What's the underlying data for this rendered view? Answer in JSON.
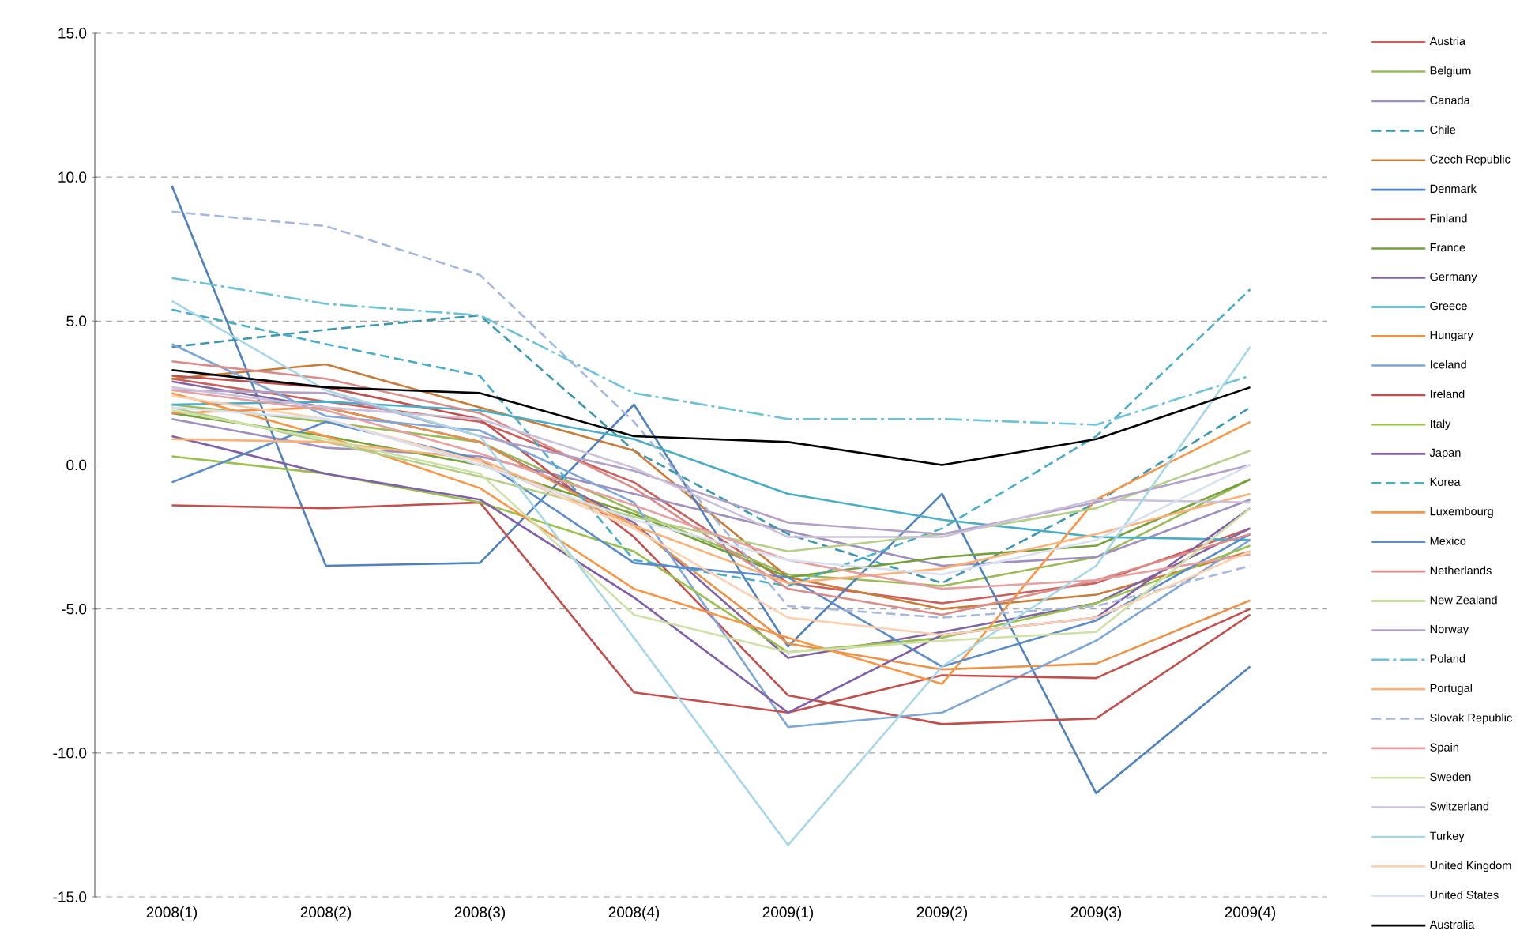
{
  "chart_data": {
    "type": "line",
    "categories": [
      "2008(1)",
      "2008(2)",
      "2008(3)",
      "2008(4)",
      "2009(1)",
      "2009(2)",
      "2009(3)",
      "2009(4)"
    ],
    "ylim": [
      -15,
      15
    ],
    "yticks": [
      {
        "value": -15,
        "label": "-15.0"
      },
      {
        "value": -10,
        "label": "-10.0"
      },
      {
        "value": -5,
        "label": "-5.0"
      },
      {
        "value": 0,
        "label": "0.0"
      },
      {
        "value": 5,
        "label": "5.0"
      },
      {
        "value": 10,
        "label": "10.0"
      },
      {
        "value": 15,
        "label": "15.0"
      }
    ],
    "grid": "y",
    "legend": "right",
    "series": [
      {
        "name": "Austria",
        "color": "#c9605c",
        "values": [
          3.0,
          2.2,
          1.5,
          -0.6,
          -4.1,
          -4.8,
          -4.1,
          -2.2
        ]
      },
      {
        "name": "Belgium",
        "color": "#9bbb59",
        "values": [
          2.1,
          1.5,
          0.8,
          -1.6,
          -3.8,
          -4.2,
          -3.2,
          -0.5
        ]
      },
      {
        "name": "Canada",
        "color": "#9f8fbf",
        "values": [
          1.6,
          0.6,
          0.3,
          -1.0,
          -2.3,
          -3.5,
          -3.2,
          -1.2
        ]
      },
      {
        "name": "Chile",
        "color": "#3d96ab",
        "line_style": "dashed",
        "values": [
          4.1,
          4.7,
          5.2,
          0.5,
          -2.4,
          -4.1,
          -1.3,
          2.0
        ]
      },
      {
        "name": "Czech Republic",
        "color": "#c77c3a",
        "values": [
          3.0,
          3.5,
          2.0,
          0.5,
          -3.9,
          -5.0,
          -4.5,
          -3.0
        ]
      },
      {
        "name": "Denmark",
        "color": "#4f81bd",
        "values": [
          9.7,
          -3.5,
          -3.4,
          2.1,
          -6.3,
          -1.0,
          -11.4,
          -7.0
        ]
      },
      {
        "name": "Finland",
        "color": "#c0504d",
        "values": [
          3.1,
          2.7,
          1.6,
          -2.5,
          -8.0,
          -9.0,
          -8.8,
          -5.2
        ]
      },
      {
        "name": "France",
        "color": "#77a03c",
        "values": [
          1.8,
          1.0,
          0.0,
          -1.7,
          -3.9,
          -3.2,
          -2.8,
          -0.5
        ]
      },
      {
        "name": "Germany",
        "color": "#8064a2",
        "values": [
          2.9,
          2.0,
          0.8,
          -2.0,
          -6.7,
          -5.8,
          -4.8,
          -2.2
        ]
      },
      {
        "name": "Greece",
        "color": "#4bacc6",
        "values": [
          2.1,
          2.2,
          1.9,
          0.9,
          -1.0,
          -1.9,
          -2.5,
          -2.6
        ]
      },
      {
        "name": "Hungary",
        "color": "#e8924a",
        "values": [
          1.8,
          2.0,
          0.8,
          -2.1,
          -6.2,
          -7.1,
          -6.9,
          -4.7
        ]
      },
      {
        "name": "Iceland",
        "color": "#7ea6d6",
        "values": [
          4.2,
          1.7,
          1.2,
          -1.3,
          -9.1,
          -8.6,
          -6.1,
          -2.6
        ]
      },
      {
        "name": "Ireland",
        "color": "#c0504d",
        "values": [
          -1.4,
          -1.5,
          -1.3,
          -7.9,
          -8.6,
          -7.3,
          -7.4,
          -5.0
        ]
      },
      {
        "name": "Italy",
        "color": "#9bc04f",
        "values": [
          0.3,
          -0.3,
          -1.3,
          -3.0,
          -6.5,
          -6.0,
          -4.8,
          -2.8
        ]
      },
      {
        "name": "Japan",
        "color": "#7f5fa8",
        "values": [
          1.0,
          -0.3,
          -1.2,
          -4.6,
          -8.6,
          -5.9,
          -5.3,
          -1.5
        ]
      },
      {
        "name": "Korea",
        "color": "#4bacc6",
        "line_style": "dashed",
        "values": [
          5.4,
          4.2,
          3.1,
          -3.3,
          -4.2,
          -2.2,
          1.0,
          6.1
        ]
      },
      {
        "name": "Luxembourg",
        "color": "#f79646",
        "values": [
          2.5,
          1.0,
          -0.8,
          -4.3,
          -6.0,
          -7.6,
          -1.2,
          1.5
        ]
      },
      {
        "name": "Mexico",
        "color": "#5b8bc9",
        "values": [
          -0.6,
          1.5,
          0.2,
          -3.4,
          -3.9,
          -7.0,
          -5.4,
          -2.4
        ]
      },
      {
        "name": "Netherlands",
        "color": "#d98c8a",
        "values": [
          3.6,
          3.0,
          1.8,
          -0.8,
          -4.3,
          -5.2,
          -4.0,
          -2.4
        ]
      },
      {
        "name": "New Zealand",
        "color": "#b5cf8a",
        "values": [
          2.0,
          0.8,
          -0.4,
          -1.8,
          -3.0,
          -2.4,
          -1.5,
          0.5
        ]
      },
      {
        "name": "Norway",
        "color": "#b3a2c7",
        "values": [
          2.6,
          2.5,
          1.0,
          -0.2,
          -2.0,
          -2.4,
          -1.3,
          0.0
        ]
      },
      {
        "name": "Poland",
        "color": "#6fc1d6",
        "line_style": "dashdot",
        "values": [
          6.5,
          5.6,
          5.2,
          2.5,
          1.6,
          1.6,
          1.4,
          3.1
        ]
      },
      {
        "name": "Portugal",
        "color": "#fab27a",
        "values": [
          0.9,
          0.8,
          0.2,
          -2.1,
          -4.1,
          -3.6,
          -2.4,
          -1.0
        ]
      },
      {
        "name": "Slovak Republic",
        "color": "#a6b8dc",
        "line_style": "dashed",
        "values": [
          8.8,
          8.3,
          6.6,
          1.5,
          -4.9,
          -5.3,
          -4.9,
          -3.5
        ]
      },
      {
        "name": "Spain",
        "color": "#e6a0a0",
        "values": [
          2.6,
          1.9,
          0.4,
          -1.4,
          -3.3,
          -4.3,
          -4.0,
          -3.1
        ]
      },
      {
        "name": "Sweden",
        "color": "#cfe0a8",
        "values": [
          1.9,
          0.9,
          -0.3,
          -5.2,
          -6.5,
          -6.1,
          -5.8,
          -1.5
        ]
      },
      {
        "name": "Switzerland",
        "color": "#ccc1da",
        "values": [
          2.7,
          2.0,
          1.6,
          -0.1,
          -2.5,
          -2.5,
          -1.2,
          -1.3
        ]
      },
      {
        "name": "Turkey",
        "color": "#a9d6e5",
        "values": [
          5.7,
          2.6,
          1.0,
          -6.0,
          -13.2,
          -7.0,
          -3.5,
          4.1
        ]
      },
      {
        "name": "United Kingdom",
        "color": "#fcd0b0",
        "values": [
          2.4,
          1.6,
          0.1,
          -2.2,
          -5.3,
          -5.9,
          -5.3,
          -3.0
        ]
      },
      {
        "name": "United States",
        "color": "#d9e1f0",
        "values": [
          2.0,
          1.6,
          0.0,
          -1.9,
          -3.3,
          -3.8,
          -2.6,
          0.0
        ]
      },
      {
        "name": "Australia",
        "color": "#000000",
        "values": [
          3.3,
          2.7,
          2.5,
          1.0,
          0.8,
          0.0,
          0.9,
          2.7
        ]
      }
    ]
  }
}
